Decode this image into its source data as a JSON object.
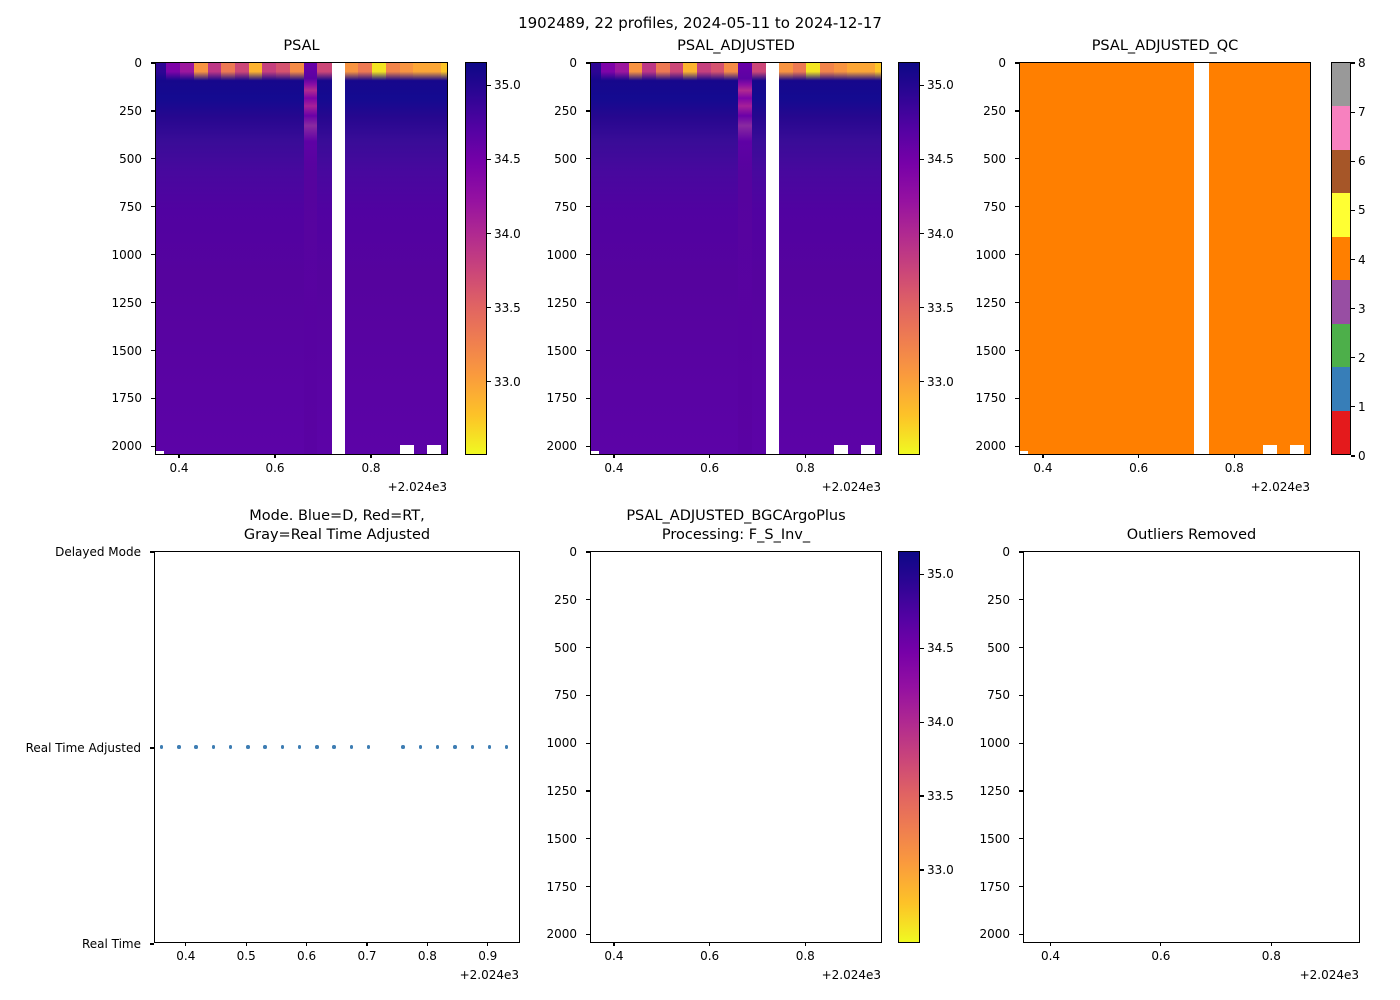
{
  "figure": {
    "title": "1902489, 22 profiles, 2024-05-11 to 2024-12-17",
    "x_offset_label": "+2.024e3",
    "background": "#ffffff"
  },
  "colors": {
    "qc_fill": "#ff7f00",
    "mode_dot": "#3d7db3",
    "qc_palette": [
      "#e41a1c",
      "#377eb8",
      "#4daf4a",
      "#984ea3",
      "#ff7f00",
      "#ffff33",
      "#a65628",
      "#f781bf",
      "#999999"
    ],
    "plasma_r_stops": [
      [
        0,
        "#0d0887"
      ],
      [
        8,
        "#2d0594"
      ],
      [
        17,
        "#5402a3"
      ],
      [
        26,
        "#7801a8"
      ],
      [
        35,
        "#9511a1"
      ],
      [
        44,
        "#b12a90"
      ],
      [
        53,
        "#ca457a"
      ],
      [
        62,
        "#e06363"
      ],
      [
        71,
        "#ef7e50"
      ],
      [
        80,
        "#fa9b3d"
      ],
      [
        90,
        "#fdc228"
      ],
      [
        100,
        "#f0f921"
      ]
    ],
    "column_depth_stops": [
      [
        4.5,
        "#16078c"
      ],
      [
        9,
        "#140a90"
      ],
      [
        14,
        "#27078f"
      ],
      [
        20,
        "#390c97"
      ],
      [
        28,
        "#48089e"
      ],
      [
        38,
        "#5102a1"
      ],
      [
        55,
        "#56039e"
      ],
      [
        100,
        "#5c03a7"
      ]
    ],
    "streak_column_stops": [
      [
        0,
        "#6a00a8"
      ],
      [
        4,
        "#5b02a3"
      ],
      [
        5.5,
        "#8a0da5"
      ],
      [
        7,
        "#b12a90"
      ],
      [
        9,
        "#7e03a8"
      ],
      [
        11,
        "#a62098"
      ],
      [
        13.5,
        "#6a00a8"
      ],
      [
        16,
        "#8a2aa0"
      ],
      [
        20,
        "#5f01a5"
      ],
      [
        28,
        "#56039e"
      ],
      [
        100,
        "#5a02a3"
      ]
    ]
  },
  "profiles": {
    "count": 22,
    "x_values": [
      2024.36,
      2024.3886,
      2024.4171,
      2024.4457,
      2024.4743,
      2024.5029,
      2024.5314,
      2024.56,
      2024.5886,
      2024.6171,
      2024.6457,
      2024.6743,
      2024.7029,
      2024.7314,
      2024.76,
      2024.7886,
      2024.8171,
      2024.8457,
      2024.8743,
      2024.9029,
      2024.9314,
      2024.96
    ],
    "missing_index": 13,
    "streak_index": 11,
    "bottom_gap_indices": [
      18,
      20
    ],
    "surface_colors": [
      "#2d0594",
      "#7e03a8",
      "#9c179e",
      "#f89441",
      "#bd3786",
      "#ed7953",
      "#cc4778",
      "#fdb32f",
      "#c5407e",
      "#d5536f",
      "#f58b46",
      "#6a00a8",
      "#cc4778",
      null,
      "#f89441",
      "#ed7953",
      "#f3e522",
      "#f2844b",
      "#f89441",
      "#fca636",
      "#fca636",
      "#fdc527"
    ],
    "surface_salinity_estimates": [
      34.9,
      34.7,
      34.5,
      33.2,
      34.1,
      33.5,
      33.9,
      33.0,
      34.0,
      33.8,
      33.4,
      34.7,
      33.9,
      null,
      33.2,
      33.5,
      32.8,
      33.5,
      33.2,
      33.1,
      33.1,
      33.0
    ],
    "subsurface_max_salinity": 35.05,
    "deep_salinity": 34.65,
    "qc_flag": 4,
    "mode_value": "Real Time Adjusted"
  },
  "chart_data": [
    {
      "type": "heatmap",
      "title": "PSAL",
      "xlim": [
        2024.352,
        2024.9625
      ],
      "ylim": [
        2050,
        0
      ],
      "x_tick_values": [
        2024.4,
        2024.6,
        2024.8
      ],
      "x_tick_labels": [
        "0.4",
        "0.6",
        "0.8"
      ],
      "x_offset_label": "+2.024e3",
      "y_tick_values": [
        0,
        250,
        500,
        750,
        1000,
        1250,
        1500,
        1750,
        2000
      ],
      "y_tick_labels": [
        "0",
        "250",
        "500",
        "750",
        "1000",
        "1250",
        "1500",
        "1750",
        "2000"
      ],
      "colorbar": {
        "cmap": "plasma_r",
        "vmin": 32.5,
        "vmax": 35.15,
        "tick_values": [
          35.0,
          34.5,
          34.0,
          33.5,
          33.0
        ],
        "tick_labels": [
          "35.0",
          "34.5",
          "34.0",
          "33.5",
          "33.0"
        ]
      }
    },
    {
      "type": "heatmap",
      "title": "PSAL_ADJUSTED",
      "xlim": [
        2024.352,
        2024.9625
      ],
      "ylim": [
        2050,
        0
      ],
      "x_tick_values": [
        2024.4,
        2024.6,
        2024.8
      ],
      "x_tick_labels": [
        "0.4",
        "0.6",
        "0.8"
      ],
      "x_offset_label": "+2.024e3",
      "y_tick_values": [
        0,
        250,
        500,
        750,
        1000,
        1250,
        1500,
        1750,
        2000
      ],
      "y_tick_labels": [
        "0",
        "250",
        "500",
        "750",
        "1000",
        "1250",
        "1500",
        "1750",
        "2000"
      ],
      "colorbar": {
        "cmap": "plasma_r",
        "vmin": 32.5,
        "vmax": 35.15,
        "tick_values": [
          35.0,
          34.5,
          34.0,
          33.5,
          33.0
        ],
        "tick_labels": [
          "35.0",
          "34.5",
          "34.0",
          "33.5",
          "33.0"
        ]
      }
    },
    {
      "type": "heatmap-qc",
      "title": "PSAL_ADJUSTED_QC",
      "qc_value_everywhere": 4,
      "xlim": [
        2024.352,
        2024.9625
      ],
      "ylim": [
        2050,
        0
      ],
      "x_tick_values": [
        2024.4,
        2024.6,
        2024.8
      ],
      "x_tick_labels": [
        "0.4",
        "0.6",
        "0.8"
      ],
      "x_offset_label": "+2.024e3",
      "y_tick_values": [
        0,
        250,
        500,
        750,
        1000,
        1250,
        1500,
        1750,
        2000
      ],
      "y_tick_labels": [
        "0",
        "250",
        "500",
        "750",
        "1000",
        "1250",
        "1500",
        "1750",
        "2000"
      ],
      "colorbar": {
        "cmap": "qc-flags",
        "tick_values": [
          0,
          1,
          2,
          3,
          4,
          5,
          6,
          7,
          8
        ],
        "tick_labels": [
          "0",
          "1",
          "2",
          "3",
          "4",
          "5",
          "6",
          "7",
          "8"
        ],
        "n_segments": 9
      }
    },
    {
      "type": "scatter",
      "title": "Mode. Blue=D, Red=RT,\nGray=Real Time Adjusted",
      "xlim": [
        2024.349,
        2024.955
      ],
      "x_tick_values": [
        2024.4,
        2024.5,
        2024.6,
        2024.7,
        2024.8,
        2024.9
      ],
      "x_tick_labels": [
        "0.4",
        "0.5",
        "0.6",
        "0.7",
        "0.8",
        "0.9"
      ],
      "x_offset_label": "+2.024e3",
      "y_tick_labels": [
        "Delayed Mode",
        "Real Time Adjusted",
        "Real Time"
      ],
      "points_y_label": "Real Time Adjusted",
      "n_points": 21
    },
    {
      "type": "empty-heatmap",
      "title": "PSAL_ADJUSTED_BGCArgoPlus\nProcessing: F_S_Inv_",
      "xlim": [
        2024.352,
        2024.9625
      ],
      "ylim": [
        2000,
        0
      ],
      "x_tick_values": [
        2024.4,
        2024.6,
        2024.8
      ],
      "x_tick_labels": [
        "0.4",
        "0.6",
        "0.8"
      ],
      "x_offset_label": "+2.024e3",
      "y_tick_values": [
        0,
        250,
        500,
        750,
        1000,
        1250,
        1500,
        1750,
        2000
      ],
      "y_tick_labels": [
        "0",
        "250",
        "500",
        "750",
        "1000",
        "1250",
        "1500",
        "1750",
        "2000"
      ],
      "colorbar": {
        "cmap": "plasma_r",
        "vmin": 32.5,
        "vmax": 35.15,
        "tick_values": [
          35.0,
          34.5,
          34.0,
          33.5,
          33.0
        ],
        "tick_labels": [
          "35.0",
          "34.5",
          "34.0",
          "33.5",
          "33.0"
        ]
      }
    },
    {
      "type": "empty",
      "title": "Outliers Removed",
      "xlim": [
        2024.352,
        2024.9625
      ],
      "ylim": [
        2000,
        0
      ],
      "x_tick_values": [
        2024.4,
        2024.6,
        2024.8
      ],
      "x_tick_labels": [
        "0.4",
        "0.6",
        "0.8"
      ],
      "x_offset_label": "+2.024e3",
      "y_tick_values": [
        0,
        250,
        500,
        750,
        1000,
        1250,
        1500,
        1750,
        2000
      ],
      "y_tick_labels": [
        "0",
        "250",
        "500",
        "750",
        "1000",
        "1250",
        "1500",
        "1750",
        "2000"
      ]
    }
  ]
}
